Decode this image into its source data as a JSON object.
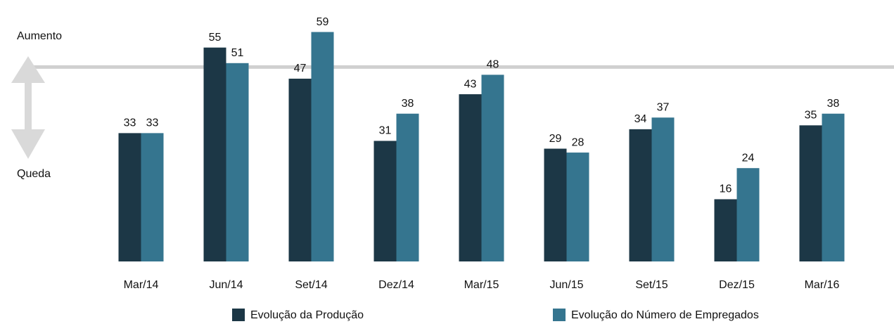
{
  "chart_data": {
    "type": "bar",
    "categories": [
      "Mar/14",
      "Jun/14",
      "Set/14",
      "Dez/14",
      "Mar/15",
      "Jun/15",
      "Set/15",
      "Dez/15",
      "Mar/16"
    ],
    "series": [
      {
        "name": "Evolução da Produção",
        "color": "#1c3746",
        "values": [
          33,
          55,
          47,
          31,
          43,
          29,
          34,
          16,
          35
        ]
      },
      {
        "name": "Evolução do Número de Empregados",
        "color": "#35758f",
        "values": [
          33,
          51,
          59,
          38,
          48,
          28,
          37,
          24,
          38
        ]
      }
    ],
    "ylim": [
      0,
      60
    ],
    "reference_value": 50,
    "annotations": [
      "Aumento",
      "Queda"
    ]
  }
}
